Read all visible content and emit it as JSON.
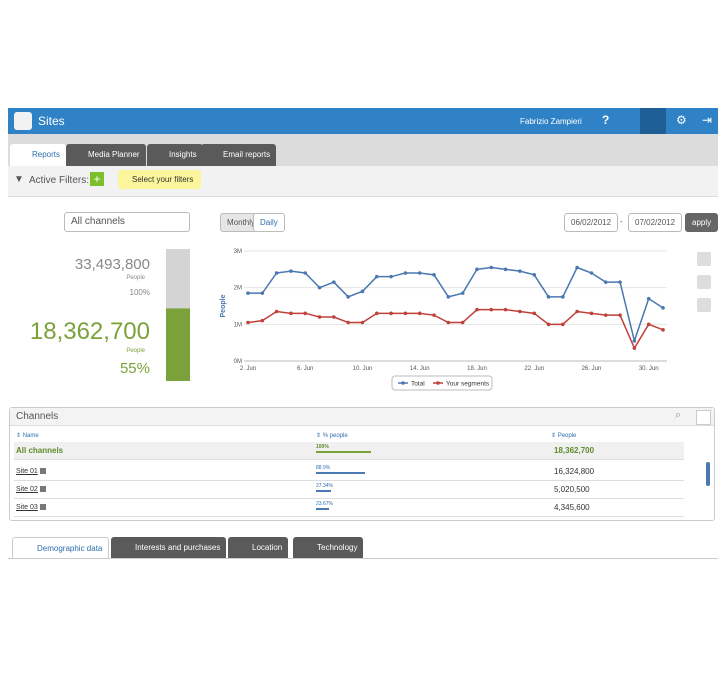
{
  "header": {
    "title": "Sites",
    "user": "Fabrizio Zampieri"
  },
  "tabs": [
    "Reports",
    "Media Planner",
    "Insights",
    "Email reports"
  ],
  "filters": {
    "label": "Active Filters:",
    "button": "Select your filters"
  },
  "controls": {
    "channel": "All channels",
    "periods": [
      "Monthly",
      "Daily"
    ],
    "date_from": "06/02/2012",
    "separator": "-",
    "date_to": "07/02/2012",
    "apply": "apply"
  },
  "summary": {
    "total": "33,493,800",
    "total_unit": "People",
    "total_share": "100%",
    "segment": "18,362,700",
    "segment_unit": "People",
    "segment_share": {
      "value": 55,
      "label": "55%"
    }
  },
  "chart_data": {
    "type": "line",
    "y_label": "People",
    "categories": [
      "2. Jun",
      null,
      null,
      null,
      "6. Jun",
      null,
      null,
      null,
      "10. Jun",
      null,
      null,
      null,
      "14. Jun",
      null,
      null,
      null,
      "18. Jun",
      null,
      null,
      null,
      "22. Jun",
      null,
      null,
      null,
      "26. Jun",
      null,
      null,
      null,
      "30. Jun",
      null
    ],
    "series": [
      {
        "name": "Total",
        "color": "#4a78b0",
        "values": [
          1.85,
          1.85,
          2.4,
          2.45,
          2.4,
          2.0,
          2.15,
          1.75,
          1.9,
          2.3,
          2.3,
          2.4,
          2.4,
          2.35,
          1.75,
          1.85,
          2.5,
          2.55,
          2.5,
          2.45,
          2.35,
          1.75,
          1.75,
          2.55,
          2.4,
          2.15,
          2.15,
          0.55,
          1.7,
          1.45
        ]
      },
      {
        "name": "Your segments",
        "color": "#c0403a",
        "values": [
          1.05,
          1.1,
          1.35,
          1.3,
          1.3,
          1.2,
          1.2,
          1.05,
          1.05,
          1.3,
          1.3,
          1.3,
          1.3,
          1.25,
          1.05,
          1.05,
          1.4,
          1.4,
          1.4,
          1.35,
          1.3,
          1.0,
          1.0,
          1.35,
          1.3,
          1.25,
          1.25,
          0.35,
          1.0,
          0.85
        ]
      }
    ],
    "ylim": [
      0,
      3
    ],
    "yticks": [
      {
        "value": 0,
        "label": "0M"
      },
      {
        "value": 1,
        "label": "1M"
      },
      {
        "value": 2,
        "label": "2M"
      },
      {
        "value": 3,
        "label": "3M"
      }
    ],
    "grid": true
  },
  "table": {
    "title": "Channels",
    "columns": [
      "Name",
      "% people",
      "People"
    ],
    "rows": [
      {
        "name": "All channels",
        "percent": {
          "value": 100,
          "label": "100%"
        },
        "people": "18,362,700"
      },
      {
        "name": "Site 01",
        "percent": {
          "value": 88.9,
          "label": "88.9%"
        },
        "people": "16,324,800"
      },
      {
        "name": "Site 02",
        "percent": {
          "value": 27.34,
          "label": "27.34%"
        },
        "people": "5,020,500"
      },
      {
        "name": "Site 03",
        "percent": {
          "value": 23.67,
          "label": "23.67%"
        },
        "people": "4,345,600"
      }
    ]
  },
  "bottom_tabs": [
    "Demographic data",
    "Interests and purchases",
    "Location",
    "Technology"
  ]
}
